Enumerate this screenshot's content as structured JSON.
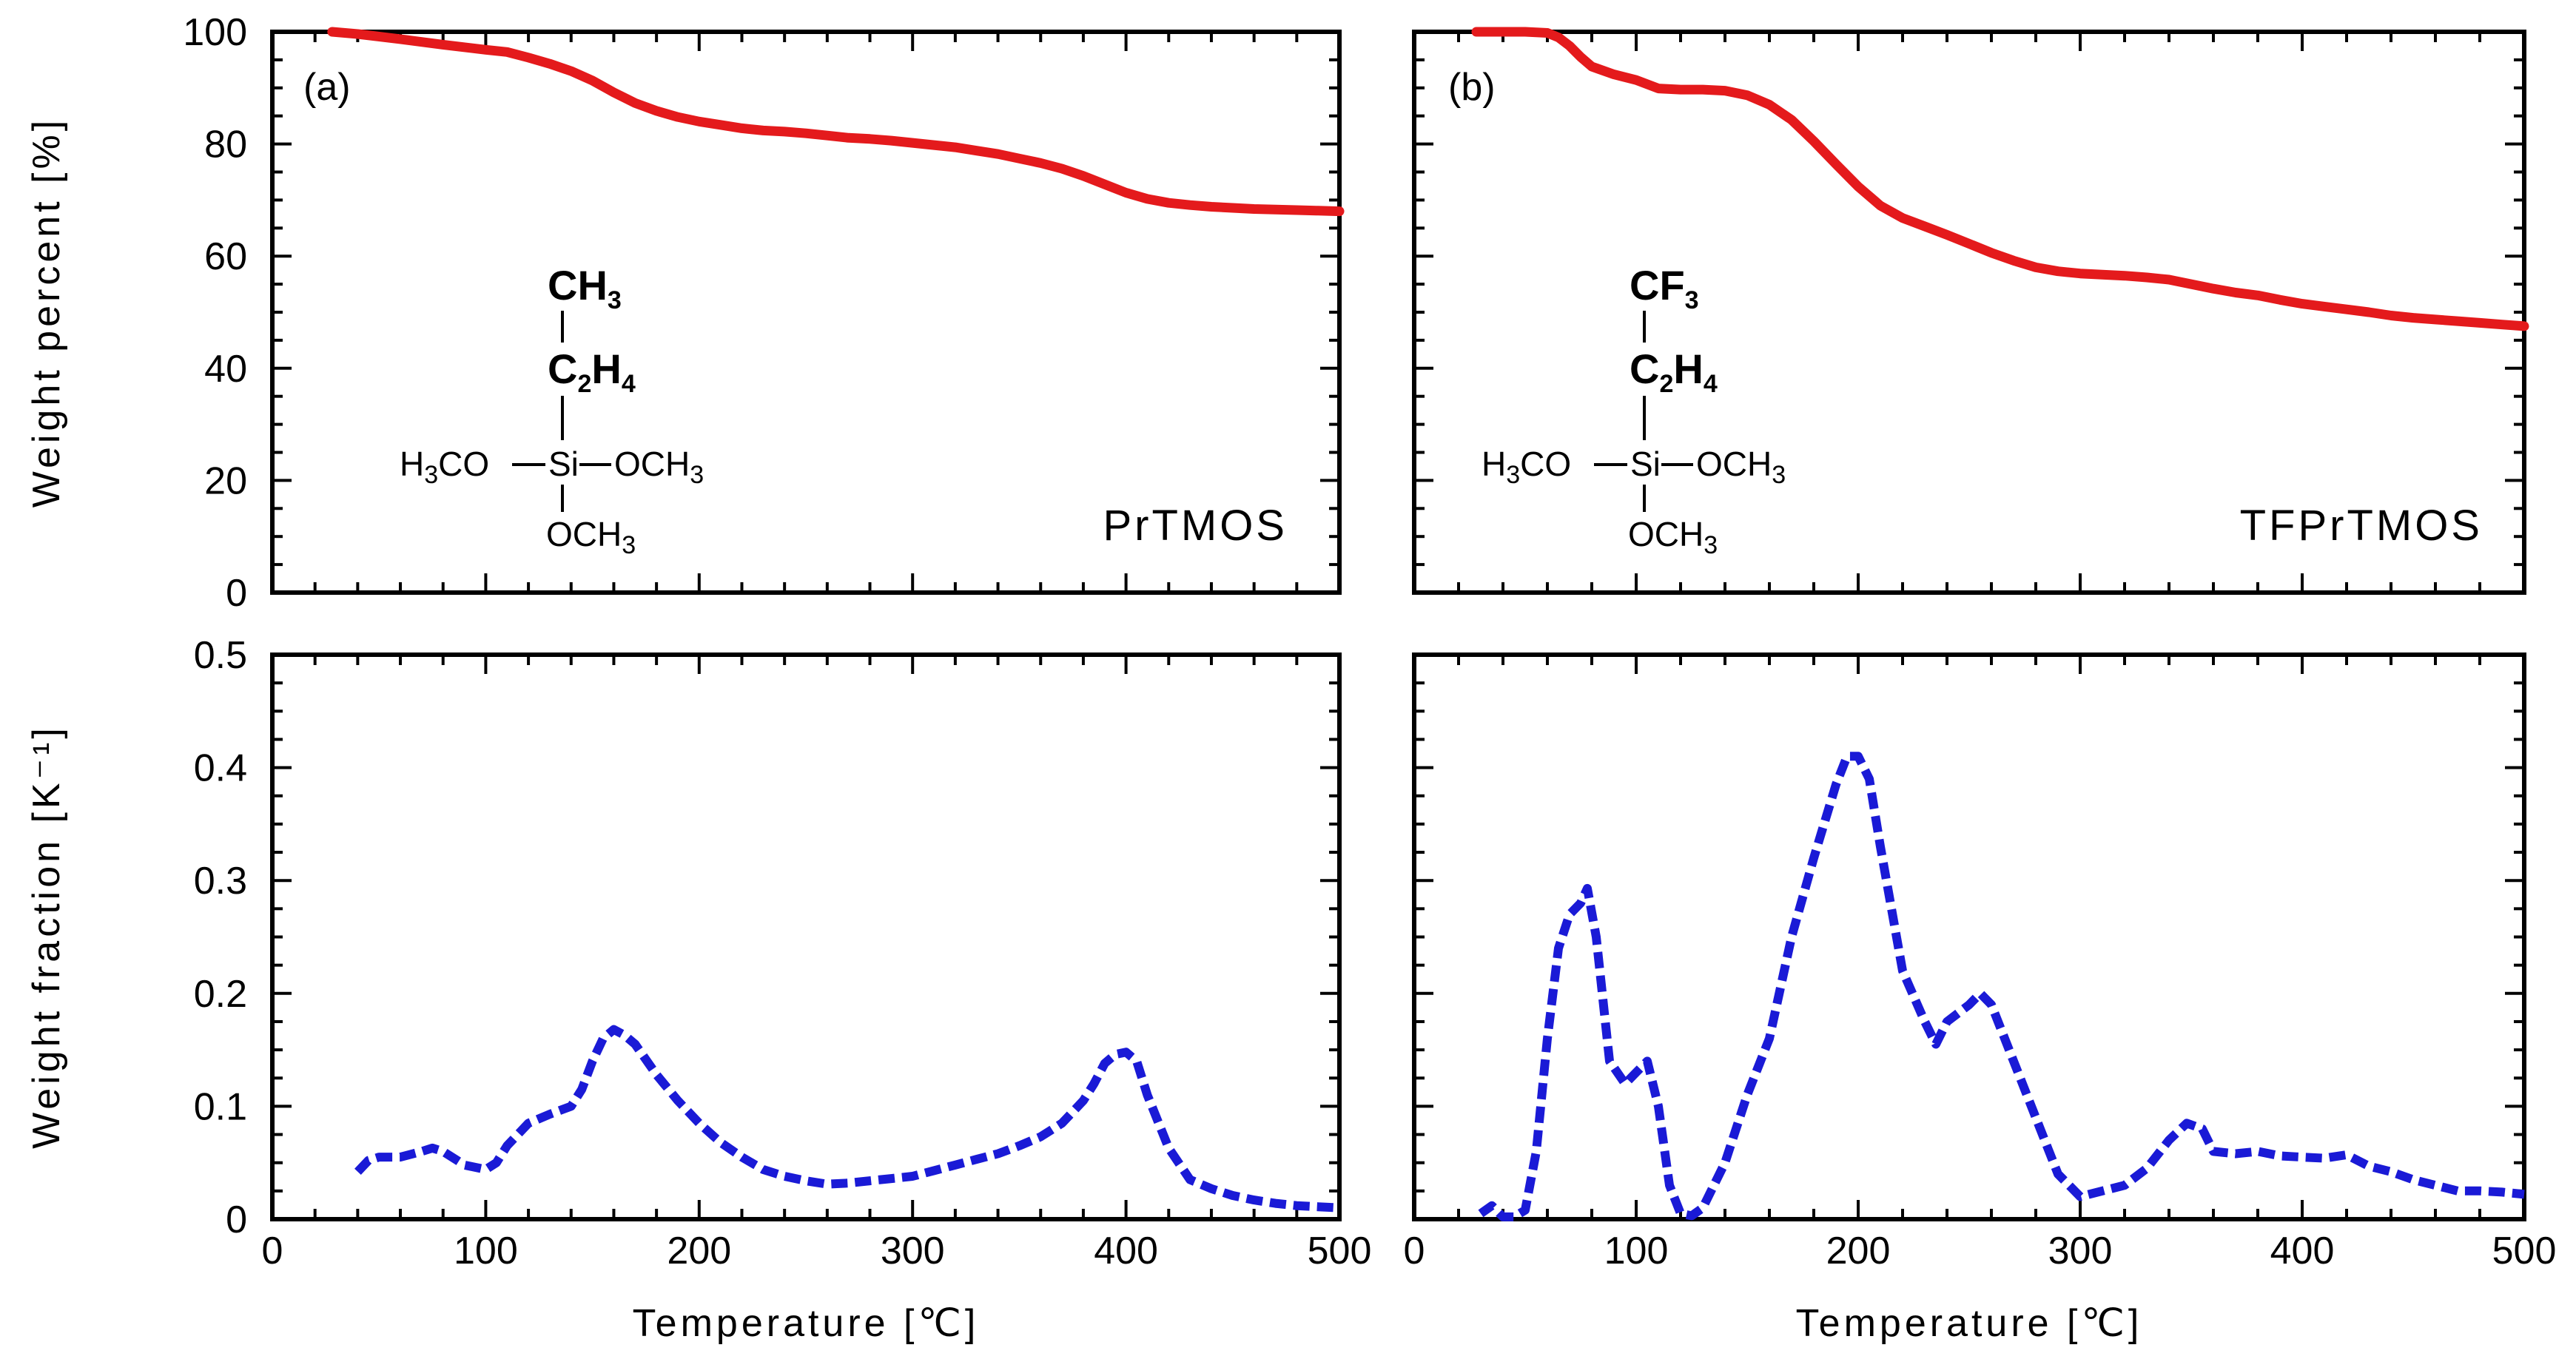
{
  "chart_data": [
    {
      "id": "a_top",
      "type": "line",
      "panel_label": "(a)",
      "compound": "PrTMOS",
      "ylabel": "Weight percent [%]",
      "xlabel": "",
      "xlim": [
        0,
        500
      ],
      "ylim": [
        0,
        100
      ],
      "xticks": [
        "0",
        "100",
        "200",
        "300",
        "400",
        "500"
      ],
      "yticks": [
        "0",
        "20",
        "40",
        "60",
        "80",
        "100"
      ],
      "color": "#e41a1c",
      "style": "solid",
      "x": [
        28,
        40,
        60,
        80,
        100,
        110,
        120,
        130,
        140,
        150,
        160,
        170,
        180,
        190,
        200,
        210,
        220,
        230,
        240,
        250,
        260,
        270,
        280,
        290,
        300,
        310,
        320,
        330,
        340,
        350,
        360,
        370,
        380,
        390,
        400,
        410,
        420,
        430,
        440,
        450,
        460,
        470,
        480,
        490,
        500
      ],
      "y": [
        100,
        99.6,
        98.7,
        97.7,
        96.8,
        96.4,
        95.4,
        94.3,
        93,
        91.3,
        89.2,
        87.3,
        85.9,
        84.8,
        84,
        83.4,
        82.8,
        82.4,
        82.2,
        81.9,
        81.5,
        81.1,
        80.9,
        80.6,
        80.2,
        79.8,
        79.4,
        78.8,
        78.2,
        77.4,
        76.6,
        75.6,
        74.3,
        72.8,
        71.3,
        70.2,
        69.5,
        69.1,
        68.8,
        68.6,
        68.4,
        68.3,
        68.2,
        68.1,
        68
      ]
    },
    {
      "id": "b_top",
      "type": "line",
      "panel_label": "(b)",
      "compound": "TFPrTMOS",
      "ylabel": "",
      "xlabel": "",
      "xlim": [
        0,
        500
      ],
      "ylim": [
        0,
        100
      ],
      "xticks": [],
      "yticks": [],
      "color": "#e41a1c",
      "style": "solid",
      "x": [
        28,
        40,
        50,
        60,
        65,
        70,
        75,
        80,
        90,
        100,
        110,
        120,
        130,
        140,
        150,
        160,
        170,
        180,
        190,
        200,
        210,
        220,
        230,
        240,
        250,
        260,
        270,
        280,
        290,
        300,
        310,
        320,
        330,
        340,
        350,
        360,
        370,
        380,
        390,
        400,
        410,
        420,
        430,
        440,
        450,
        460,
        470,
        480,
        490,
        500
      ],
      "y": [
        100,
        100,
        100,
        99.8,
        99,
        97.5,
        95.5,
        93.8,
        92.4,
        91.4,
        89.9,
        89.7,
        89.7,
        89.5,
        88.7,
        87,
        84.3,
        80.5,
        76.4,
        72.4,
        69,
        66.8,
        65.3,
        63.8,
        62.2,
        60.6,
        59.2,
        58,
        57.3,
        56.9,
        56.7,
        56.5,
        56.2,
        55.8,
        55,
        54.2,
        53.5,
        53,
        52.2,
        51.5,
        51,
        50.5,
        50,
        49.4,
        49,
        48.7,
        48.4,
        48.1,
        47.8,
        47.5
      ]
    },
    {
      "id": "a_bottom",
      "type": "line",
      "ylabel": "Weight fraction [K⁻¹]",
      "xlabel": "Temperature [℃]",
      "xlim": [
        0,
        500
      ],
      "ylim": [
        0,
        0.5
      ],
      "xticks": [
        "0",
        "100",
        "200",
        "300",
        "400",
        "500"
      ],
      "yticks": [
        "0",
        "0.1",
        "0.2",
        "0.3",
        "0.4",
        "0.5"
      ],
      "color": "#1a1ad6",
      "style": "dashed",
      "x": [
        40,
        45,
        50,
        60,
        70,
        75,
        80,
        90,
        100,
        105,
        110,
        120,
        130,
        140,
        145,
        150,
        155,
        160,
        165,
        170,
        180,
        190,
        200,
        210,
        220,
        230,
        240,
        250,
        260,
        270,
        280,
        290,
        300,
        310,
        320,
        330,
        340,
        350,
        360,
        370,
        380,
        385,
        390,
        395,
        400,
        405,
        410,
        420,
        430,
        440,
        450,
        460,
        470,
        480,
        490,
        500
      ],
      "y": [
        0.042,
        0.052,
        0.055,
        0.055,
        0.06,
        0.063,
        0.06,
        0.048,
        0.044,
        0.05,
        0.065,
        0.085,
        0.093,
        0.1,
        0.115,
        0.14,
        0.16,
        0.168,
        0.163,
        0.155,
        0.128,
        0.105,
        0.085,
        0.068,
        0.055,
        0.044,
        0.038,
        0.034,
        0.031,
        0.032,
        0.034,
        0.036,
        0.038,
        0.043,
        0.048,
        0.053,
        0.058,
        0.065,
        0.073,
        0.085,
        0.105,
        0.12,
        0.138,
        0.146,
        0.148,
        0.14,
        0.11,
        0.063,
        0.035,
        0.027,
        0.021,
        0.017,
        0.014,
        0.012,
        0.011,
        0.01
      ]
    },
    {
      "id": "b_bottom",
      "type": "line",
      "ylabel": "",
      "xlabel": "Temperature [℃]",
      "xlim": [
        0,
        500
      ],
      "ylim": [
        0,
        0.5
      ],
      "xticks": [
        "0",
        "100",
        "200",
        "300",
        "400",
        "500"
      ],
      "yticks": [],
      "color": "#1a1ad6",
      "style": "dashed",
      "x": [
        30,
        35,
        40,
        45,
        50,
        55,
        60,
        65,
        70,
        75,
        78,
        82,
        88,
        95,
        100,
        105,
        110,
        115,
        120,
        125,
        130,
        140,
        150,
        160,
        170,
        180,
        190,
        195,
        200,
        205,
        210,
        220,
        230,
        235,
        240,
        250,
        255,
        260,
        270,
        280,
        290,
        300,
        310,
        320,
        330,
        340,
        348,
        355,
        360,
        370,
        380,
        390,
        400,
        410,
        420,
        430,
        440,
        450,
        460,
        470,
        480,
        490,
        500
      ],
      "y": [
        0.005,
        0.012,
        0.002,
        0.002,
        0.008,
        0.06,
        0.16,
        0.24,
        0.27,
        0.28,
        0.293,
        0.25,
        0.14,
        0.12,
        0.13,
        0.14,
        0.1,
        0.03,
        0.005,
        0.003,
        0.01,
        0.05,
        0.11,
        0.16,
        0.25,
        0.32,
        0.385,
        0.41,
        0.41,
        0.39,
        0.33,
        0.22,
        0.175,
        0.155,
        0.175,
        0.19,
        0.2,
        0.19,
        0.14,
        0.09,
        0.04,
        0.02,
        0.025,
        0.03,
        0.045,
        0.07,
        0.085,
        0.08,
        0.06,
        0.058,
        0.06,
        0.056,
        0.055,
        0.054,
        0.057,
        0.047,
        0.042,
        0.035,
        0.03,
        0.025,
        0.025,
        0.024,
        0.022
      ]
    }
  ],
  "structures": {
    "a": {
      "top_group_main": "CH",
      "top_group_sub": "3",
      "link_main": "C",
      "link_sub1": "2",
      "link_h": "H",
      "link_sub2": "4",
      "left_a": "H",
      "left_sub": "3",
      "left_b": "CO",
      "center": "Si",
      "right_a": "OCH",
      "right_sub": "3",
      "bottom_a": "OCH",
      "bottom_sub": "3"
    },
    "b": {
      "top_group_main": "CF",
      "top_group_sub": "3",
      "link_main": "C",
      "link_sub1": "2",
      "link_h": "H",
      "link_sub2": "4",
      "left_a": "H",
      "left_sub": "3",
      "left_b": "CO",
      "center": "Si",
      "right_a": "OCH",
      "right_sub": "3",
      "bottom_a": "OCH",
      "bottom_sub": "3"
    }
  }
}
